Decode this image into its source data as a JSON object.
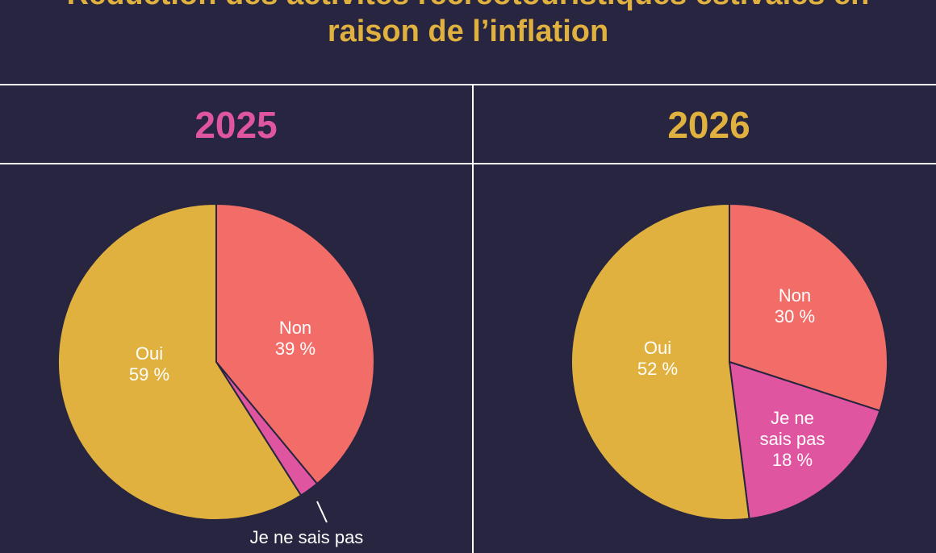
{
  "title": "Réduction des activités récréotouristiques estivales en raison de l’inflation",
  "chart_data": [
    {
      "type": "pie",
      "title": "2025",
      "title_color": "#e055a0",
      "categories": [
        "Non",
        "Je ne sais pas",
        "Oui"
      ],
      "values": [
        39,
        2,
        59
      ],
      "value_labels": [
        "39 %",
        null,
        "59 %"
      ],
      "colors": [
        "#f26d68",
        "#e055a0",
        "#e0b13e"
      ]
    },
    {
      "type": "pie",
      "title": "2026",
      "title_color": "#e0b13e",
      "categories": [
        "Non",
        "Je ne sais pas",
        "Oui"
      ],
      "values": [
        30,
        18,
        52
      ],
      "value_labels": [
        "30 %",
        "18 %",
        "52 %"
      ],
      "colors": [
        "#f26d68",
        "#e055a0",
        "#e0b13e"
      ]
    }
  ]
}
